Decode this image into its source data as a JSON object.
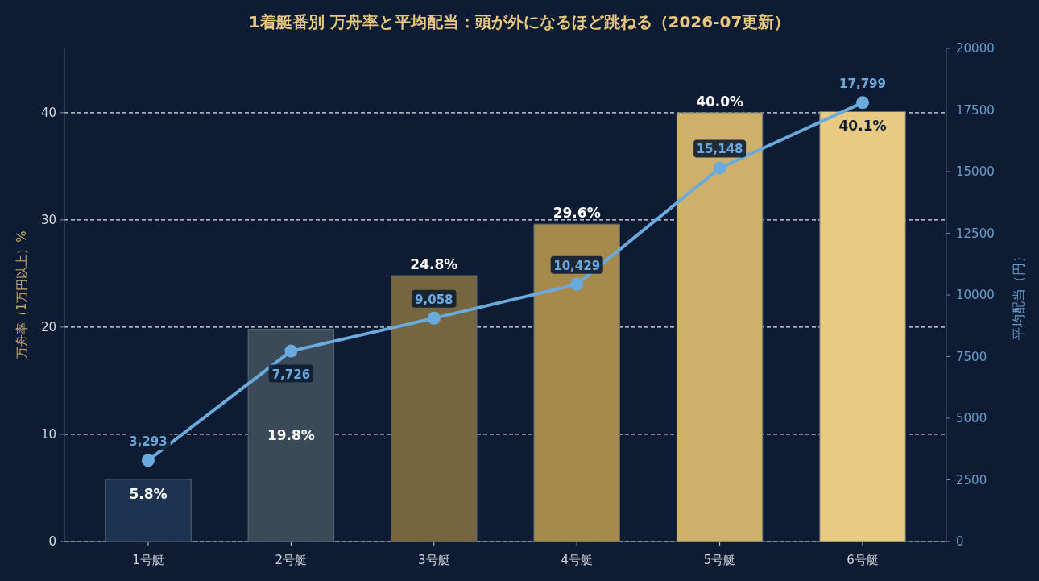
{
  "chart_data": {
    "type": "bar",
    "title": "1着艇番別 万舟率と平均配当：頭が外になるほど跳ねる（2026-07更新）",
    "ylabel": "万舟率（1万円以上）%",
    "y2label": "平均配当（円）",
    "categories": [
      "1号艇",
      "2号艇",
      "3号艇",
      "4号艇",
      "5号艇",
      "6号艇"
    ],
    "series": [
      {
        "type": "bar",
        "colors": [
          "#1e3350",
          "#3a4a58",
          "#756640",
          "#a68a4c",
          "#cdb06a",
          "#e8ca82"
        ],
        "values": [
          5.8,
          19.8,
          24.8,
          29.6,
          40.0,
          40.1
        ],
        "value_labels": [
          "5.8%",
          "19.8%",
          "24.8%",
          "29.6%",
          "40.0%",
          "40.1%"
        ]
      },
      {
        "type": "line",
        "axis": "y2",
        "color": "#6aaadc",
        "marker": "circle",
        "values": [
          3293,
          7726,
          9058,
          10429,
          15148,
          17799
        ],
        "value_labels": [
          "3,293",
          "7,726",
          "9,058",
          "10,429",
          "15,148",
          "17,799"
        ]
      }
    ],
    "ylim": [
      0,
      46
    ],
    "yticks": [
      0,
      10,
      20,
      30,
      40
    ],
    "y2lim": [
      0,
      20000
    ],
    "y2ticks": [
      0,
      2500,
      5000,
      7500,
      10000,
      12500,
      15000,
      17500,
      20000
    ],
    "grid": "y"
  }
}
